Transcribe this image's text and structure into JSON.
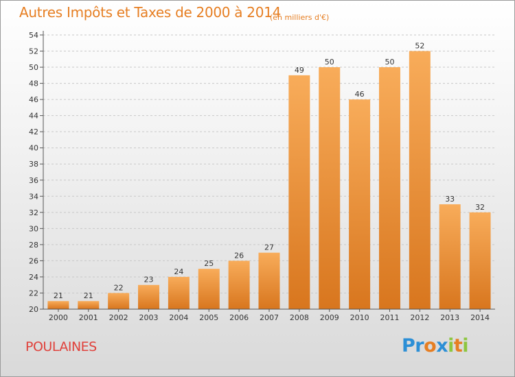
{
  "title": "Autres Impôts et Taxes de 2000 à 2014",
  "subtitle": "(en milliers d'€)",
  "town": "POULAINES",
  "logo": {
    "text": "Proxiti",
    "letters": [
      {
        "ch": "P",
        "color": "#2c8fd6"
      },
      {
        "ch": "r",
        "color": "#2c8fd6"
      },
      {
        "ch": "o",
        "color": "#e67e22"
      },
      {
        "ch": "x",
        "color": "#2c8fd6"
      },
      {
        "ch": "i",
        "color": "#8dc63f"
      },
      {
        "ch": "t",
        "color": "#e67e22"
      },
      {
        "ch": "i",
        "color": "#8dc63f"
      }
    ]
  },
  "colors": {
    "title": "#e67e22",
    "town": "#e0413b",
    "bar_light": "#f8ac5a",
    "bar_dark": "#d8761e",
    "axis": "#555555"
  },
  "chart_data": {
    "type": "bar",
    "categories": [
      "2000",
      "2001",
      "2002",
      "2003",
      "2004",
      "2005",
      "2006",
      "2007",
      "2008",
      "2009",
      "2010",
      "2011",
      "2012",
      "2013",
      "2014"
    ],
    "values": [
      21,
      21,
      22,
      23,
      24,
      25,
      26,
      27,
      49,
      50,
      46,
      50,
      52,
      33,
      32
    ],
    "ylim": [
      20,
      54
    ],
    "yticks": [
      20,
      22,
      24,
      26,
      28,
      30,
      32,
      34,
      36,
      38,
      40,
      42,
      44,
      46,
      48,
      50,
      52,
      54
    ],
    "grid": true,
    "xlabel": "",
    "ylabel": ""
  }
}
